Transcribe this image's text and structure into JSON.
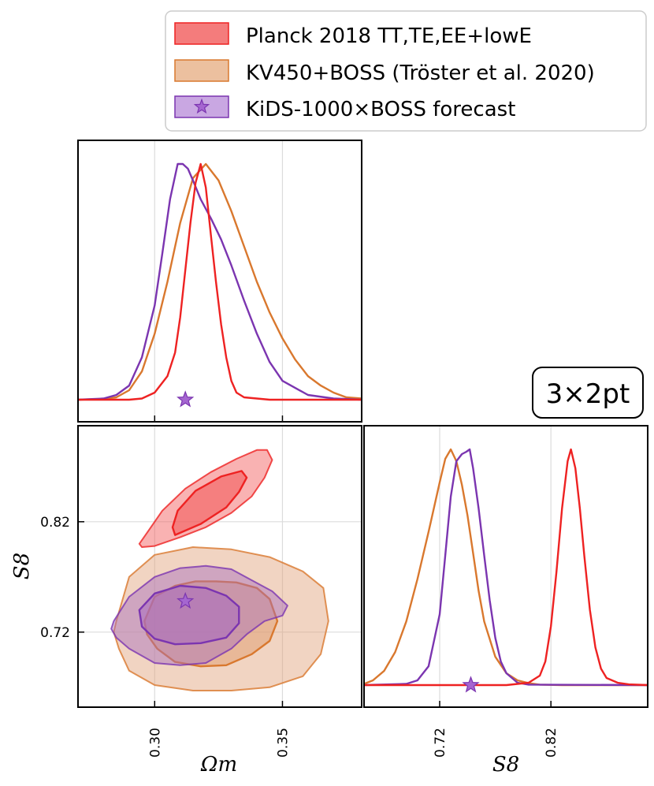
{
  "chart_data": {
    "type": "corner",
    "annotation": "3×2pt",
    "axes": {
      "omega_m": {
        "label": "Ωm",
        "ticks": [
          0.3,
          0.35
        ],
        "tick_labels": [
          "0.30",
          "0.35"
        ],
        "range": [
          0.27,
          0.381
        ]
      },
      "s8": {
        "label": "S8",
        "ticks": [
          0.72,
          0.82
        ],
        "tick_labels": [
          "0.72",
          "0.82"
        ],
        "range": [
          0.652,
          0.907
        ]
      }
    },
    "grid": true,
    "legend": {
      "placement": "top",
      "entries": [
        {
          "label": "Planck 2018 TT,TE,EE+lowE",
          "color": "#ee2222",
          "fill": "#f47c7c",
          "marker": ""
        },
        {
          "label": "KV450+BOSS (Tröster et al. 2020)",
          "color": "#d9782e",
          "fill": "#ecc09f",
          "marker": ""
        },
        {
          "label": "KiDS-1000×BOSS forecast",
          "color": "#7b35b0",
          "fill": "#c9a7e2",
          "marker": "star"
        }
      ]
    },
    "series": [
      {
        "name": "Planck 2018 TT,TE,EE+lowE",
        "color": "#ee2222",
        "omega_m_pdf": {
          "x": [
            0.27,
            0.29,
            0.295,
            0.3,
            0.305,
            0.308,
            0.31,
            0.312,
            0.314,
            0.316,
            0.318,
            0.32,
            0.322,
            0.324,
            0.326,
            0.328,
            0.33,
            0.332,
            0.335,
            0.34,
            0.345,
            0.381
          ],
          "y": [
            0,
            0,
            0.005,
            0.03,
            0.1,
            0.2,
            0.35,
            0.55,
            0.75,
            0.92,
            1.0,
            0.9,
            0.7,
            0.5,
            0.32,
            0.18,
            0.08,
            0.03,
            0.01,
            0.005,
            0,
            0
          ]
        },
        "s8_pdf": {
          "x": [
            0.652,
            0.78,
            0.8,
            0.81,
            0.815,
            0.82,
            0.825,
            0.83,
            0.835,
            0.838,
            0.842,
            0.846,
            0.85,
            0.855,
            0.86,
            0.865,
            0.87,
            0.88,
            0.89,
            0.907
          ],
          "y": [
            0,
            0,
            0.01,
            0.04,
            0.1,
            0.25,
            0.48,
            0.75,
            0.95,
            1.0,
            0.92,
            0.75,
            0.55,
            0.32,
            0.16,
            0.07,
            0.03,
            0.01,
            0.003,
            0
          ]
        },
        "contour_68": {
          "x": [
            0.308,
            0.318,
            0.328,
            0.333,
            0.336,
            0.334,
            0.326,
            0.316,
            0.309,
            0.307
          ],
          "y": [
            0.808,
            0.818,
            0.833,
            0.847,
            0.86,
            0.866,
            0.861,
            0.848,
            0.83,
            0.815
          ]
        },
        "contour_95": {
          "x": [
            0.295,
            0.3,
            0.31,
            0.32,
            0.33,
            0.338,
            0.343,
            0.346,
            0.344,
            0.34,
            0.332,
            0.322,
            0.312,
            0.303,
            0.297,
            0.294
          ],
          "y": [
            0.797,
            0.798,
            0.806,
            0.815,
            0.828,
            0.843,
            0.86,
            0.876,
            0.885,
            0.885,
            0.877,
            0.865,
            0.85,
            0.83,
            0.81,
            0.8
          ]
        }
      },
      {
        "name": "KV450+BOSS (Tröster et al. 2020)",
        "color": "#d9782e",
        "omega_m_pdf": {
          "x": [
            0.27,
            0.28,
            0.285,
            0.29,
            0.295,
            0.3,
            0.305,
            0.31,
            0.315,
            0.32,
            0.325,
            0.33,
            0.335,
            0.34,
            0.345,
            0.35,
            0.355,
            0.36,
            0.365,
            0.37,
            0.375,
            0.381
          ],
          "y": [
            0,
            0.003,
            0.01,
            0.04,
            0.12,
            0.28,
            0.5,
            0.75,
            0.94,
            1.0,
            0.93,
            0.8,
            0.65,
            0.5,
            0.37,
            0.26,
            0.17,
            0.1,
            0.06,
            0.03,
            0.01,
            0.005
          ]
        },
        "s8_pdf": {
          "x": [
            0.652,
            0.66,
            0.67,
            0.68,
            0.69,
            0.7,
            0.71,
            0.72,
            0.725,
            0.73,
            0.735,
            0.74,
            0.745,
            0.75,
            0.755,
            0.76,
            0.77,
            0.78,
            0.79,
            0.8,
            0.81,
            0.83,
            0.907
          ],
          "y": [
            0.005,
            0.02,
            0.06,
            0.14,
            0.27,
            0.45,
            0.65,
            0.86,
            0.96,
            1.0,
            0.95,
            0.85,
            0.72,
            0.56,
            0.4,
            0.27,
            0.12,
            0.05,
            0.02,
            0.008,
            0.002,
            0,
            0
          ]
        },
        "contour_68": {
          "x": [
            0.296,
            0.3,
            0.308,
            0.316,
            0.324,
            0.332,
            0.34,
            0.345,
            0.348,
            0.345,
            0.338,
            0.328,
            0.318,
            0.308,
            0.301,
            0.297
          ],
          "y": [
            0.73,
            0.752,
            0.762,
            0.766,
            0.766,
            0.765,
            0.76,
            0.75,
            0.73,
            0.712,
            0.7,
            0.69,
            0.689,
            0.693,
            0.705,
            0.718
          ]
        },
        "contour_95": {
          "x": [
            0.285,
            0.29,
            0.3,
            0.315,
            0.33,
            0.345,
            0.358,
            0.366,
            0.368,
            0.365,
            0.358,
            0.345,
            0.33,
            0.315,
            0.3,
            0.29,
            0.286,
            0.284
          ],
          "y": [
            0.73,
            0.77,
            0.79,
            0.797,
            0.795,
            0.788,
            0.775,
            0.76,
            0.73,
            0.7,
            0.68,
            0.67,
            0.667,
            0.667,
            0.672,
            0.685,
            0.705,
            0.72
          ]
        }
      },
      {
        "name": "KiDS-1000×BOSS forecast",
        "color": "#7b35b0",
        "omega_m_pdf": {
          "x": [
            0.27,
            0.28,
            0.285,
            0.29,
            0.295,
            0.3,
            0.303,
            0.306,
            0.309,
            0.311,
            0.313,
            0.315,
            0.318,
            0.322,
            0.326,
            0.33,
            0.335,
            0.34,
            0.345,
            0.35,
            0.36,
            0.37,
            0.381
          ],
          "y": [
            0,
            0.005,
            0.02,
            0.06,
            0.18,
            0.4,
            0.62,
            0.85,
            1.0,
            1.0,
            0.98,
            0.93,
            0.85,
            0.77,
            0.68,
            0.57,
            0.42,
            0.28,
            0.16,
            0.08,
            0.02,
            0.005,
            0
          ]
        },
        "s8_pdf": {
          "x": [
            0.652,
            0.69,
            0.7,
            0.71,
            0.72,
            0.725,
            0.73,
            0.735,
            0.74,
            0.744,
            0.747,
            0.75,
            0.755,
            0.76,
            0.765,
            0.77,
            0.775,
            0.78,
            0.79,
            0.8,
            0.907
          ],
          "y": [
            0,
            0.005,
            0.02,
            0.08,
            0.3,
            0.55,
            0.8,
            0.95,
            0.98,
            0.99,
            1.0,
            0.92,
            0.75,
            0.55,
            0.36,
            0.2,
            0.1,
            0.05,
            0.01,
            0.002,
            0
          ]
        },
        "contour_68": {
          "x": [
            0.294,
            0.3,
            0.31,
            0.32,
            0.328,
            0.333,
            0.333,
            0.328,
            0.318,
            0.308,
            0.3,
            0.295
          ],
          "y": [
            0.74,
            0.755,
            0.762,
            0.76,
            0.753,
            0.743,
            0.728,
            0.715,
            0.71,
            0.709,
            0.714,
            0.725
          ]
        },
        "contour_95": {
          "x": [
            0.284,
            0.29,
            0.3,
            0.31,
            0.32,
            0.33,
            0.338,
            0.346,
            0.352,
            0.35,
            0.343,
            0.336,
            0.33,
            0.32,
            0.31,
            0.3,
            0.29,
            0.285,
            0.283
          ],
          "y": [
            0.73,
            0.752,
            0.77,
            0.778,
            0.78,
            0.777,
            0.767,
            0.757,
            0.744,
            0.735,
            0.73,
            0.718,
            0.705,
            0.692,
            0.69,
            0.692,
            0.705,
            0.715,
            0.723
          ]
        },
        "forecast_point": {
          "omega_m": 0.312,
          "s8": 0.748
        }
      }
    ]
  }
}
